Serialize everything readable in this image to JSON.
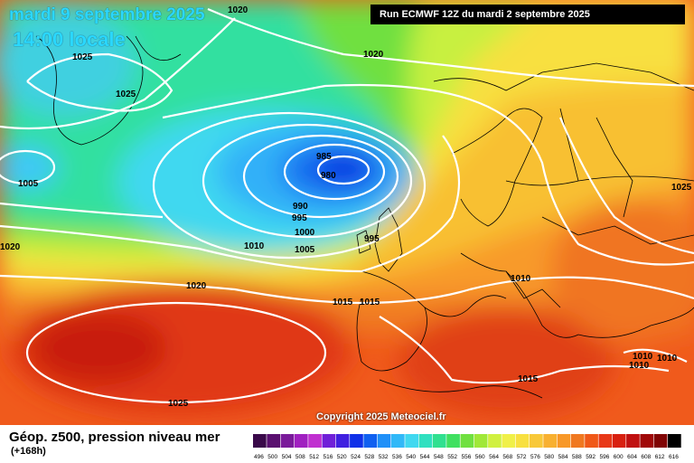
{
  "title": {
    "date": "mardi 9 septembre 2025",
    "time": "14:00 locale"
  },
  "run_info": "Run ECMWF 12Z du mardi 2 septembre 2025",
  "copyright": "Copyright 2025 Meteociel.fr",
  "legend": {
    "label": "Géop. z500, pression niveau mer",
    "lead": "(+168h)"
  },
  "scale": {
    "values": [
      "496",
      "500",
      "504",
      "508",
      "512",
      "516",
      "520",
      "524",
      "528",
      "532",
      "536",
      "540",
      "544",
      "548",
      "552",
      "556",
      "560",
      "564",
      "568",
      "572",
      "576",
      "580",
      "584",
      "588",
      "592",
      "596",
      "600",
      "604",
      "608",
      "612",
      "616"
    ],
    "colors": [
      "#3a0a4a",
      "#5a1070",
      "#7a1a9a",
      "#a020c0",
      "#c030d0",
      "#7020d8",
      "#4020e0",
      "#1030e8",
      "#1060f0",
      "#2090f8",
      "#30b8f8",
      "#40d8f0",
      "#30e0c0",
      "#30e090",
      "#40e060",
      "#70e040",
      "#a0e838",
      "#d0f040",
      "#f0f048",
      "#f8e040",
      "#f8c838",
      "#f8b030",
      "#f89828",
      "#f07820",
      "#f05818",
      "#e83818",
      "#d82010",
      "#c01010",
      "#a00808",
      "#800404",
      "#000000"
    ]
  },
  "isobars": [
    {
      "name": "label-1020-top",
      "text": "1020"
    },
    {
      "name": "label-1025-a",
      "text": "1025"
    },
    {
      "name": "label-1025-b",
      "text": "1025"
    },
    {
      "name": "label-1020-ne",
      "text": "1020"
    },
    {
      "name": "label-1005-west",
      "text": "1005"
    },
    {
      "name": "label-985",
      "text": "985"
    },
    {
      "name": "label-980",
      "text": "980"
    },
    {
      "name": "label-990",
      "text": "990"
    },
    {
      "name": "label-995-a",
      "text": "995"
    },
    {
      "name": "label-1000",
      "text": "1000"
    },
    {
      "name": "label-1005-c",
      "text": "1005"
    },
    {
      "name": "label-995-b",
      "text": "995"
    },
    {
      "name": "label-1010-a",
      "text": "1010"
    },
    {
      "name": "label-1020-w",
      "text": "1020"
    },
    {
      "name": "label-1025-east",
      "text": "1025"
    },
    {
      "name": "label-1020-mid",
      "text": "1020"
    },
    {
      "name": "label-1015-a",
      "text": "1015"
    },
    {
      "name": "label-1015-b",
      "text": "1015"
    },
    {
      "name": "label-1010-b",
      "text": "1010"
    },
    {
      "name": "label-1015-south",
      "text": "1015"
    },
    {
      "name": "label-1010-c",
      "text": "1010"
    },
    {
      "name": "label-1010-d",
      "text": "1010"
    },
    {
      "name": "label-1010-e",
      "text": "1010"
    },
    {
      "name": "label-1025-south",
      "text": "1025"
    }
  ]
}
